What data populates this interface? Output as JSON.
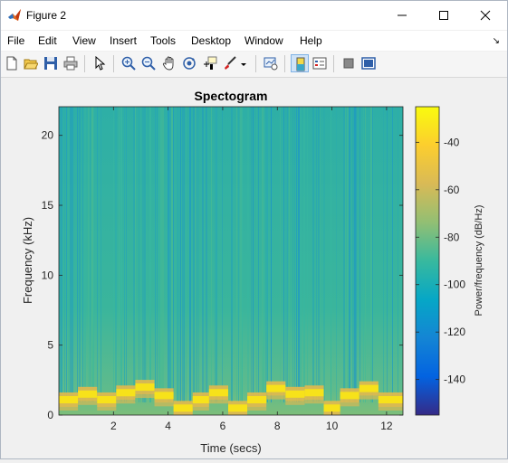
{
  "window": {
    "title": "Figure 2",
    "icon": "matlab-icon",
    "controls": [
      "minimize-icon",
      "maximize-icon",
      "close-icon"
    ]
  },
  "menu": {
    "items": [
      "File",
      "Edit",
      "View",
      "Insert",
      "Tools",
      "Desktop",
      "Window",
      "Help"
    ],
    "dock_arrow": "↘"
  },
  "toolbar": {
    "buttons": [
      "new-figure-icon",
      "open-file-icon",
      "save-icon",
      "print-icon",
      "edit-plot-pointer-icon",
      "zoom-in-icon",
      "zoom-out-icon",
      "pan-icon",
      "rotate-3d-icon",
      "data-cursor-icon",
      "brush-icon",
      "brush-dropdown-icon",
      "link-plot-icon",
      "insert-colorbar-icon",
      "insert-legend-icon",
      "hide-plot-tools-icon",
      "show-plot-tools-icon"
    ],
    "active": "insert-colorbar-icon"
  },
  "chart_data": {
    "type": "heatmap",
    "title": "Spectogram",
    "xlabel": "Time (secs)",
    "ylabel": "Frequency (kHz)",
    "xlim": [
      0,
      12.6
    ],
    "ylim": [
      0,
      22.05
    ],
    "x_ticks": [
      "2",
      "4",
      "6",
      "8",
      "10",
      "12"
    ],
    "y_ticks": [
      "0",
      "5",
      "10",
      "15",
      "20"
    ],
    "colorbar": {
      "label": "Power/frequency (dB/Hz)",
      "range": [
        -155,
        -25
      ],
      "ticks": [
        "-40",
        "-60",
        "-80",
        "-100",
        "-120",
        "-140"
      ],
      "colormap": "parula"
    },
    "note_segments": [
      {
        "start": 0.0,
        "end": 0.7,
        "f_khz": 1.1
      },
      {
        "start": 0.7,
        "end": 1.4,
        "f_khz": 1.5
      },
      {
        "start": 1.4,
        "end": 2.1,
        "f_khz": 1.1
      },
      {
        "start": 2.1,
        "end": 2.8,
        "f_khz": 1.6
      },
      {
        "start": 2.8,
        "end": 3.5,
        "f_khz": 2.0
      },
      {
        "start": 3.5,
        "end": 4.2,
        "f_khz": 1.4
      },
      {
        "start": 4.2,
        "end": 4.9,
        "f_khz": 0.5
      },
      {
        "start": 4.9,
        "end": 5.5,
        "f_khz": 1.1
      },
      {
        "start": 5.5,
        "end": 6.2,
        "f_khz": 1.6
      },
      {
        "start": 6.2,
        "end": 6.9,
        "f_khz": 0.5
      },
      {
        "start": 6.9,
        "end": 7.6,
        "f_khz": 1.1
      },
      {
        "start": 7.6,
        "end": 8.3,
        "f_khz": 1.9
      },
      {
        "start": 8.3,
        "end": 9.0,
        "f_khz": 1.5
      },
      {
        "start": 9.0,
        "end": 9.7,
        "f_khz": 1.6
      },
      {
        "start": 9.7,
        "end": 10.3,
        "f_khz": 0.5
      },
      {
        "start": 10.3,
        "end": 11.0,
        "f_khz": 1.4
      },
      {
        "start": 11.0,
        "end": 11.7,
        "f_khz": 1.9
      },
      {
        "start": 11.7,
        "end": 12.6,
        "f_khz": 1.1
      }
    ]
  }
}
